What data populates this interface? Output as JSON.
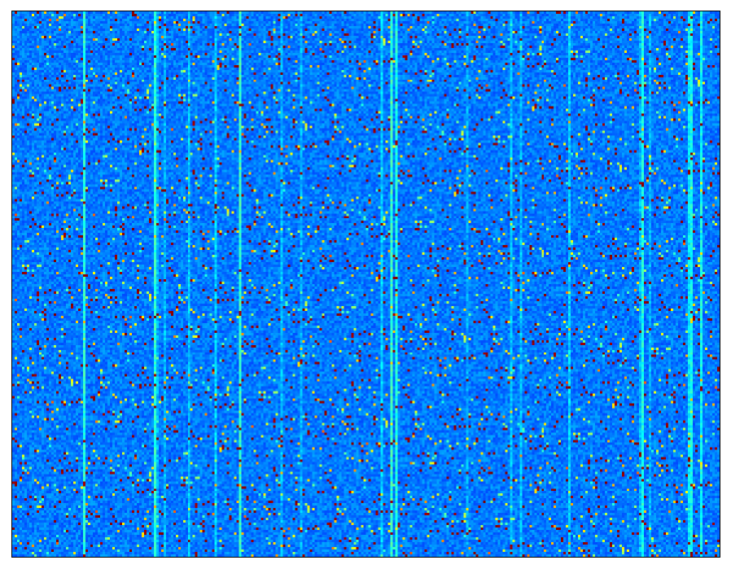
{
  "image": {
    "colormap": "jet",
    "background_color": "#1a5cf0",
    "hot_pixel_color": "#8b0000",
    "stripe_color": "#3ad0f0",
    "frame_color": "#000000"
  }
}
